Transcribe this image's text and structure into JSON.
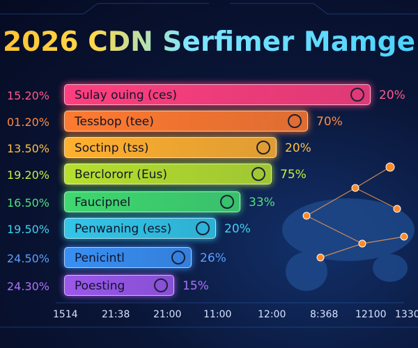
{
  "header": {
    "title": "2026 CDN Serfimer Mamge"
  },
  "rows": [
    {
      "left": "15.20%",
      "name": "Sulay ouing (ces)",
      "right": "20%"
    },
    {
      "left": "01.20%",
      "name": "Tessbop (tee)",
      "right": "70%"
    },
    {
      "left": "13.50%",
      "name": "Soctinp (tss)",
      "right": "20%"
    },
    {
      "left": "19.20%",
      "name": "Berclororr (Eus)",
      "right": "75%"
    },
    {
      "left": "16.50%",
      "name": "Faucipnel",
      "right": "33%"
    },
    {
      "left": "19.50%",
      "name": "Penwaning (ess)",
      "right": "20%"
    },
    {
      "left": "24.50%",
      "name": "Penicintl",
      "right": "26%"
    },
    {
      "left": "24.30%",
      "name": "Poesting",
      "right": "15%"
    }
  ],
  "axis_labels": [
    "1514",
    "21:38",
    "21:00",
    "11:00",
    "12:00",
    "8:368",
    "12100",
    "1330"
  ]
}
